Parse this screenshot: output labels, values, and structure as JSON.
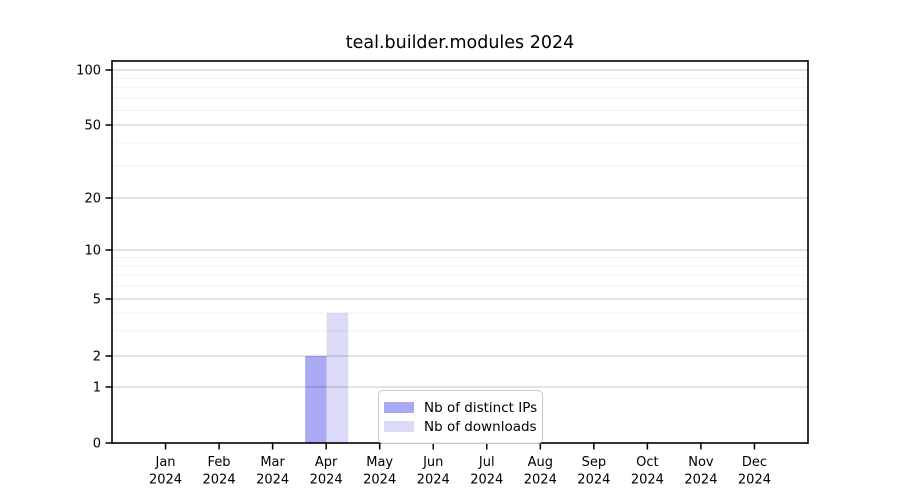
{
  "chart_data": {
    "type": "bar",
    "title": "teal.builder.modules 2024",
    "categories": [
      "Jan 2024",
      "Feb 2024",
      "Mar 2024",
      "Apr 2024",
      "May 2024",
      "Jun 2024",
      "Jul 2024",
      "Aug 2024",
      "Sep 2024",
      "Oct 2024",
      "Nov 2024",
      "Dec 2024"
    ],
    "series": [
      {
        "name": "Nb of distinct IPs",
        "color": "#a9a9f6",
        "values": [
          0,
          0,
          0,
          2,
          0,
          0,
          0,
          0,
          0,
          0,
          0,
          0
        ]
      },
      {
        "name": "Nb of downloads",
        "color": "#dbdbf8",
        "values": [
          0,
          0,
          0,
          4,
          0,
          0,
          0,
          0,
          0,
          0,
          0,
          0
        ]
      }
    ],
    "yaxis": {
      "scale": "log-with-zero",
      "range": [
        0,
        100
      ],
      "major_ticks": [
        0,
        1,
        2,
        5,
        10,
        20,
        50,
        100
      ],
      "minor_gridlines": [
        3,
        4,
        6,
        7,
        8,
        9,
        30,
        40,
        60,
        70,
        80,
        90
      ]
    },
    "xlabel": "",
    "ylabel": "",
    "grid": "horizontal",
    "legend_position": "lower-center-inside",
    "colors": {
      "axis": "#000000",
      "text": "#000000",
      "major_grid": "rgba(0,0,0,0.18)",
      "minor_grid": "rgba(0,0,0,0.05)",
      "background": "#ffffff"
    }
  }
}
